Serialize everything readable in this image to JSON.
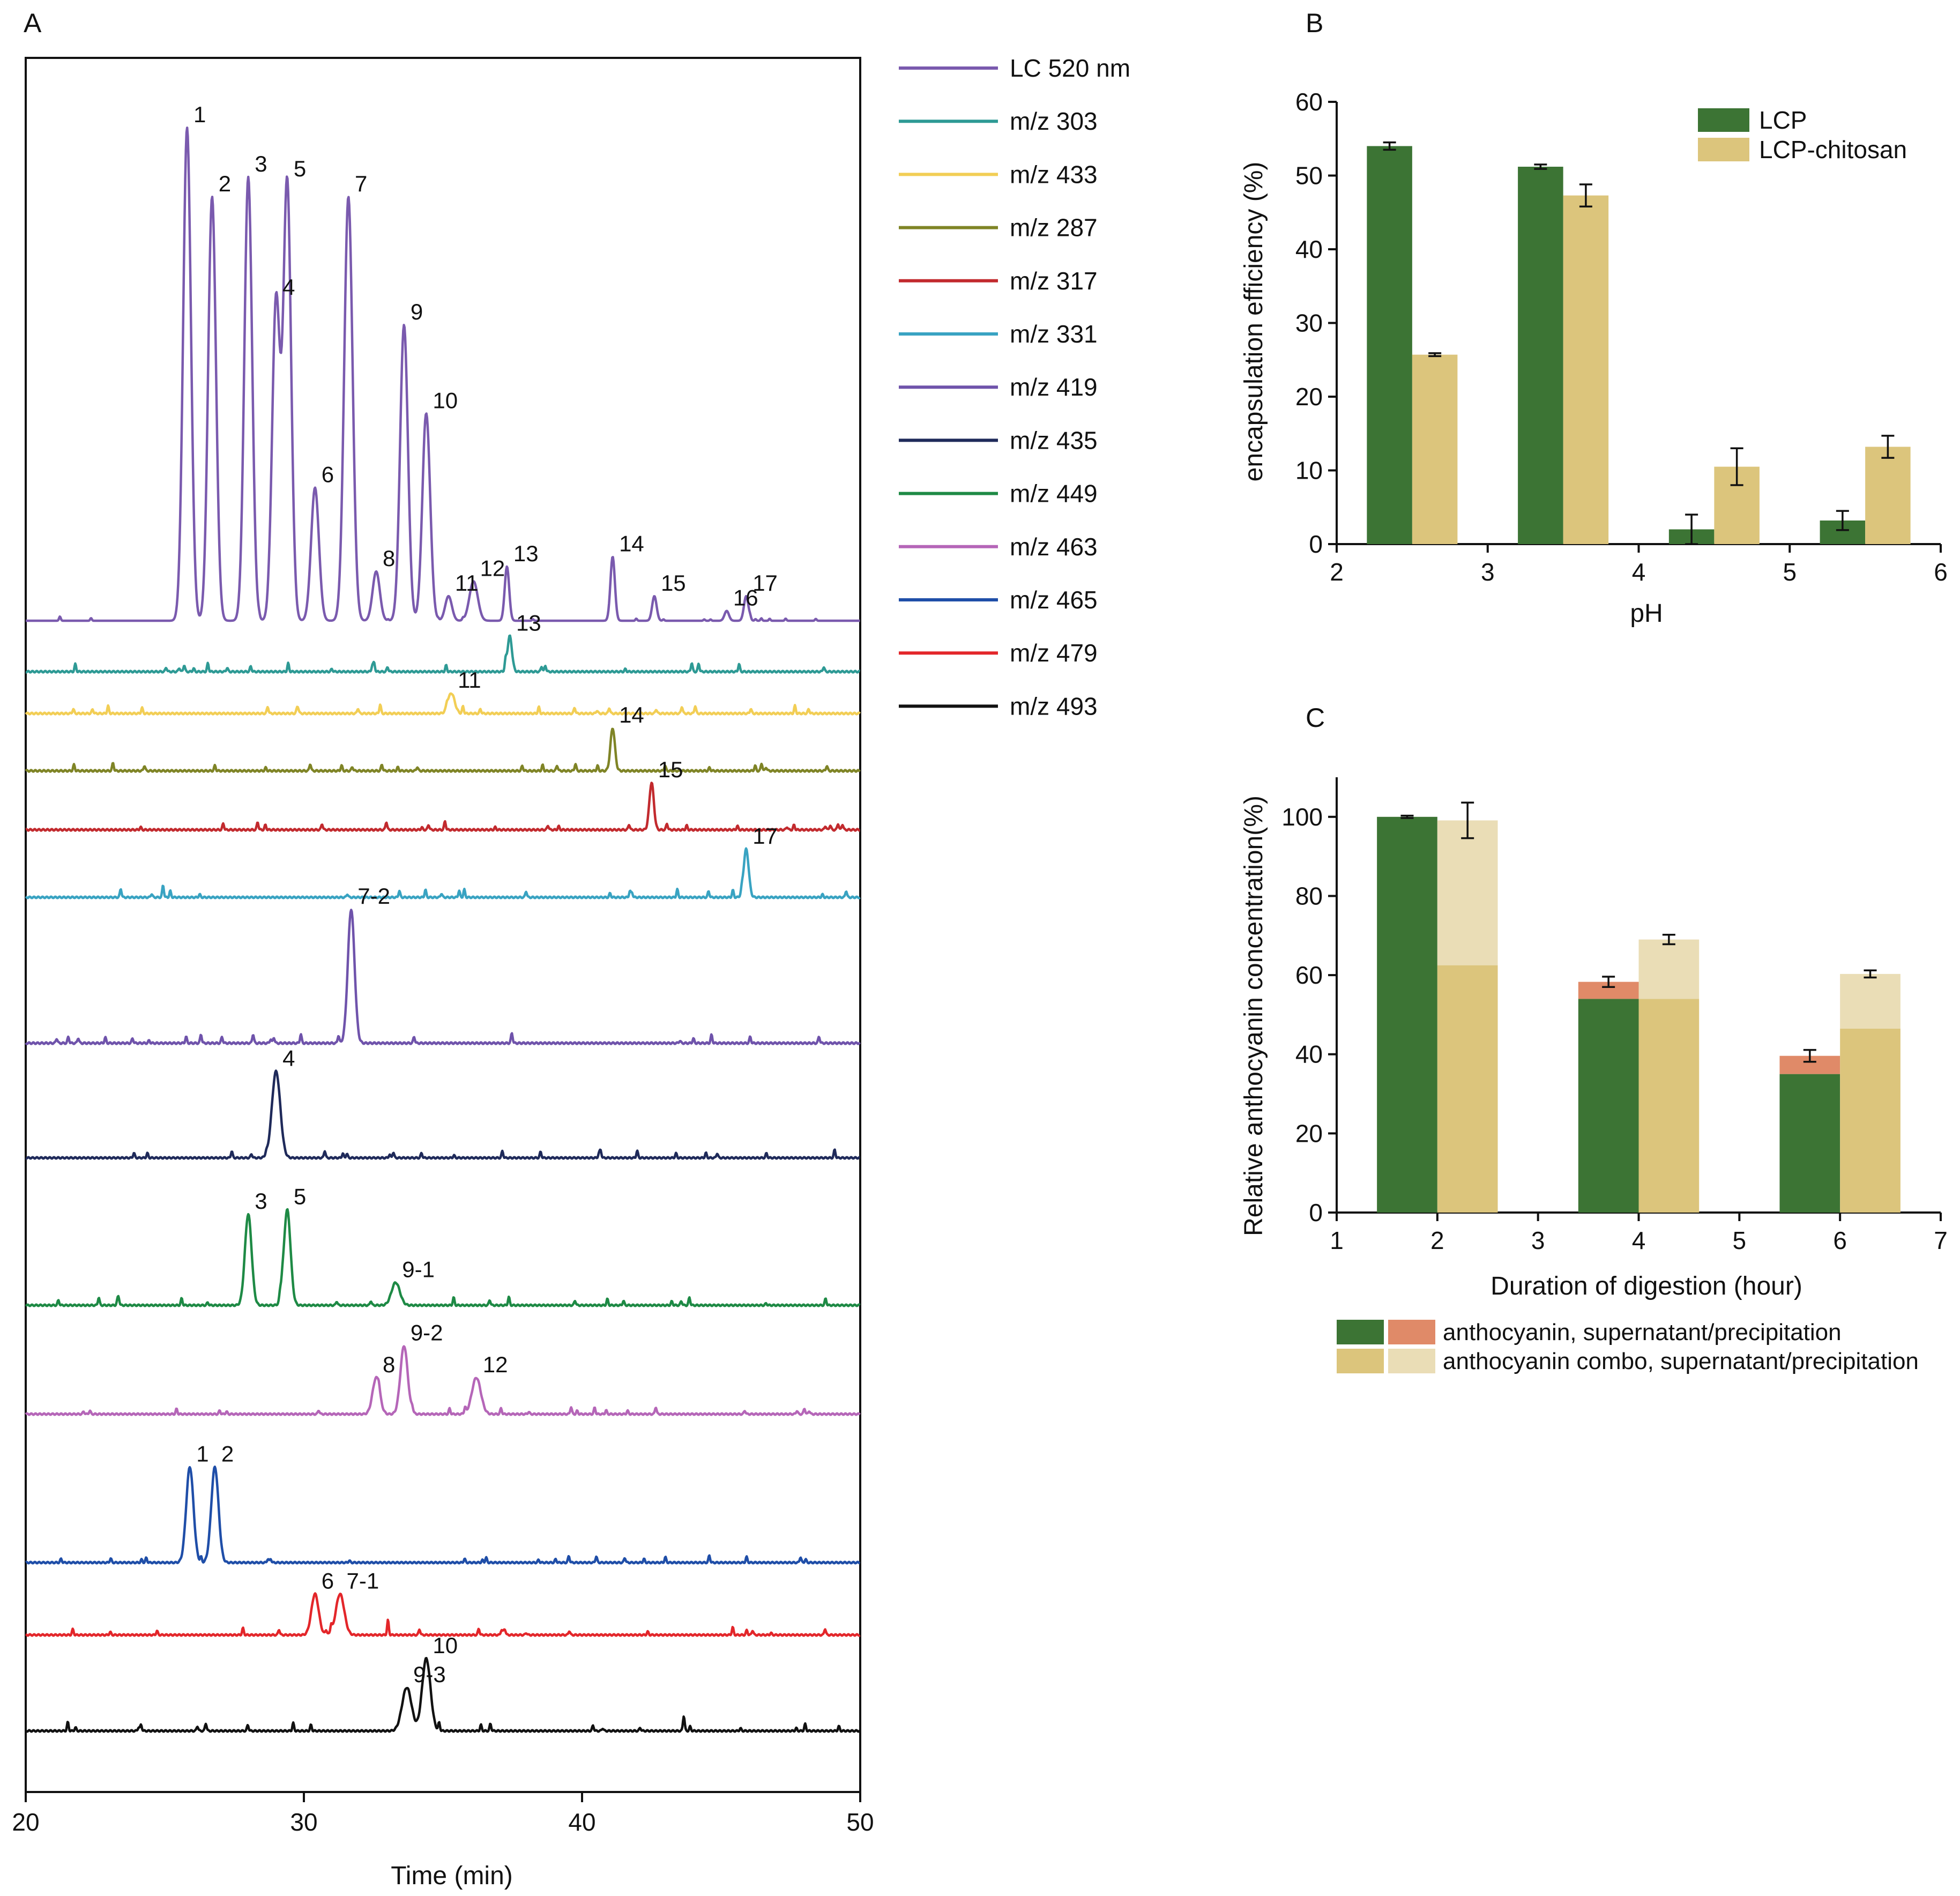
{
  "chart_data": [
    {
      "panel": "A",
      "type": "line",
      "xlabel": "Time (min)",
      "ylabel": "",
      "xlim": [
        20,
        50
      ],
      "xticks": [
        20,
        30,
        40,
        50
      ],
      "legend_position": "right",
      "series": [
        {
          "name": "LC 520 nm",
          "color": "#7A5AAE",
          "peaks": [
            {
              "t": 25.8,
              "h": 1.0,
              "w": 0.14,
              "label": "1"
            },
            {
              "t": 26.7,
              "h": 0.86,
              "w": 0.14,
              "label": "2"
            },
            {
              "t": 28.0,
              "h": 0.9,
              "w": 0.14,
              "label": "3"
            },
            {
              "t": 29.0,
              "h": 0.65,
              "w": 0.14,
              "label": "4"
            },
            {
              "t": 29.4,
              "h": 0.89,
              "w": 0.14,
              "label": "5"
            },
            {
              "t": 30.4,
              "h": 0.27,
              "w": 0.14,
              "label": "6"
            },
            {
              "t": 31.6,
              "h": 0.86,
              "w": 0.15,
              "label": "7"
            },
            {
              "t": 32.6,
              "h": 0.1,
              "w": 0.13,
              "label": "8"
            },
            {
              "t": 33.6,
              "h": 0.6,
              "w": 0.14,
              "label": "9"
            },
            {
              "t": 34.4,
              "h": 0.42,
              "w": 0.14,
              "label": "10"
            },
            {
              "t": 35.2,
              "h": 0.05,
              "w": 0.12,
              "label": "11"
            },
            {
              "t": 36.1,
              "h": 0.08,
              "w": 0.15,
              "label": "12"
            },
            {
              "t": 37.3,
              "h": 0.11,
              "w": 0.08,
              "label": "13"
            },
            {
              "t": 41.1,
              "h": 0.13,
              "w": 0.08,
              "label": "14"
            },
            {
              "t": 42.6,
              "h": 0.05,
              "w": 0.08,
              "label": "15"
            },
            {
              "t": 45.2,
              "h": 0.02,
              "w": 0.08,
              "label": "16"
            },
            {
              "t": 45.9,
              "h": 0.05,
              "w": 0.08,
              "label": "17"
            }
          ]
        },
        {
          "name": "m/z 303",
          "color": "#2E9A95",
          "peaks": [
            {
              "t": 37.4,
              "h": 0.07,
              "w": 0.08,
              "label": "13"
            }
          ]
        },
        {
          "name": "m/z 433",
          "color": "#F2CE55",
          "peaks": [
            {
              "t": 35.3,
              "h": 0.04,
              "w": 0.12,
              "label": "11"
            }
          ]
        },
        {
          "name": "m/z 287",
          "color": "#7F8426",
          "peaks": [
            {
              "t": 41.1,
              "h": 0.08,
              "w": 0.08,
              "label": "14"
            }
          ]
        },
        {
          "name": "m/z 317",
          "color": "#C22A2E",
          "peaks": [
            {
              "t": 42.5,
              "h": 0.09,
              "w": 0.08,
              "label": "15"
            }
          ]
        },
        {
          "name": "m/z 331",
          "color": "#39A3C2",
          "peaks": [
            {
              "t": 45.9,
              "h": 0.1,
              "w": 0.09,
              "label": "17"
            }
          ]
        },
        {
          "name": "m/z 419",
          "color": "#6F53AB",
          "peaks": [
            {
              "t": 31.7,
              "h": 0.25,
              "w": 0.12,
              "label": "7-2"
            }
          ]
        },
        {
          "name": "m/z 435",
          "color": "#1F2A5A",
          "peaks": [
            {
              "t": 29.0,
              "h": 0.19,
              "w": 0.15,
              "label": "4"
            }
          ]
        },
        {
          "name": "m/z 449",
          "color": "#1E8A45",
          "peaks": [
            {
              "t": 28.0,
              "h": 0.2,
              "w": 0.12,
              "label": "3"
            },
            {
              "t": 29.4,
              "h": 0.21,
              "w": 0.12,
              "label": "5"
            },
            {
              "t": 33.3,
              "h": 0.05,
              "w": 0.15,
              "label": "9-1"
            }
          ]
        },
        {
          "name": "m/z 463",
          "color": "#B566B8",
          "peaks": [
            {
              "t": 32.6,
              "h": 0.08,
              "w": 0.13,
              "label": "8"
            },
            {
              "t": 33.6,
              "h": 0.15,
              "w": 0.13,
              "label": "9-2"
            },
            {
              "t": 36.2,
              "h": 0.08,
              "w": 0.16,
              "label": "12"
            }
          ]
        },
        {
          "name": "m/z 465",
          "color": "#1F4EA8",
          "peaks": [
            {
              "t": 25.9,
              "h": 0.21,
              "w": 0.13,
              "label": "1"
            },
            {
              "t": 26.8,
              "h": 0.21,
              "w": 0.13,
              "label": "2"
            }
          ]
        },
        {
          "name": "m/z 479",
          "color": "#E3262A",
          "peaks": [
            {
              "t": 30.4,
              "h": 0.09,
              "w": 0.13,
              "label": "6"
            },
            {
              "t": 31.3,
              "h": 0.09,
              "w": 0.15,
              "label": "7-1"
            }
          ]
        },
        {
          "name": "m/z 493",
          "color": "#111111",
          "peaks": [
            {
              "t": 33.7,
              "h": 0.09,
              "w": 0.17,
              "label": "9-3"
            },
            {
              "t": 34.4,
              "h": 0.15,
              "w": 0.15,
              "label": "10"
            }
          ]
        }
      ]
    },
    {
      "panel": "B",
      "type": "bar",
      "xlabel": "pH",
      "ylabel": "encapsulation efficiency (%)",
      "xlim": [
        2,
        6
      ],
      "ylim": [
        0,
        60
      ],
      "xticks": [
        2,
        3,
        4,
        5,
        6
      ],
      "yticks": [
        0,
        10,
        20,
        30,
        40,
        50,
        60
      ],
      "legend_position": "top-right",
      "categories": [
        2.5,
        3.5,
        4.5,
        5.5
      ],
      "series": [
        {
          "name": "LCP",
          "color": "#3C7434",
          "values": [
            54.0,
            51.2,
            2.0,
            3.2
          ],
          "errors": [
            0.5,
            0.3,
            2.0,
            1.3
          ]
        },
        {
          "name": "LCP-chitosan",
          "color": "#DCC57C",
          "values": [
            25.7,
            47.3,
            10.5,
            13.2
          ],
          "errors": [
            0.2,
            1.5,
            2.5,
            1.5
          ]
        }
      ]
    },
    {
      "panel": "C",
      "type": "bar",
      "stacked": true,
      "xlabel": "Duration of digestion (hour)",
      "ylabel": "Relative anthocyanin concentration(%)",
      "xlim": [
        1,
        7
      ],
      "ylim": [
        0,
        110
      ],
      "xticks": [
        1,
        2,
        3,
        4,
        5,
        6,
        7
      ],
      "yticks": [
        0,
        20,
        40,
        60,
        80,
        100
      ],
      "legend_position": "bottom",
      "legend_entries": [
        "anthocyanin, supernatant/precipitation",
        "anthocyanin combo, supernatant/precipitation"
      ],
      "categories": [
        2,
        4,
        6
      ],
      "groups": [
        {
          "supernatant_color": "#3C7434",
          "precipitation_color": "#E08A68",
          "supernatant": [
            100.0,
            54.0,
            35.0
          ],
          "precipitation": [
            0.0,
            4.3,
            4.6
          ],
          "errors": [
            0.3,
            1.3,
            1.5
          ]
        },
        {
          "supernatant_color": "#DCC57C",
          "precipitation_color": "#EADDB6",
          "supernatant": [
            62.5,
            54.0,
            46.5
          ],
          "precipitation": [
            36.6,
            15.0,
            13.8
          ],
          "errors": [
            4.5,
            1.2,
            0.9
          ]
        }
      ]
    }
  ]
}
